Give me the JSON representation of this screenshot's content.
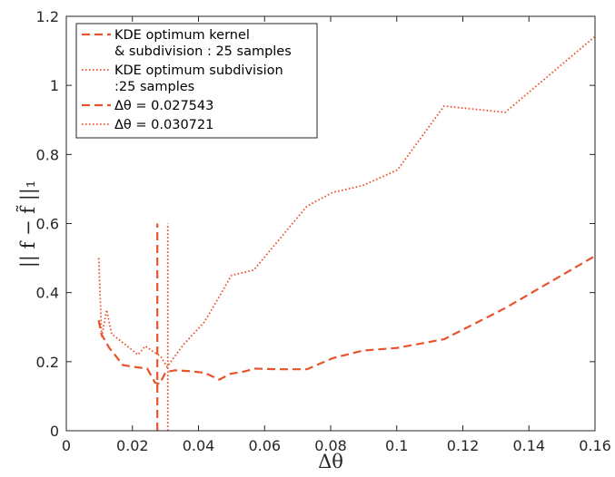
{
  "chart_data": {
    "type": "line",
    "xlabel": "Δθ",
    "ylabel": "|| f − f̃ ||₁",
    "xlim": [
      0,
      0.16
    ],
    "ylim": [
      0,
      1.2
    ],
    "xticks": [
      0,
      0.02,
      0.04,
      0.06,
      0.08,
      0.1,
      0.12,
      0.14,
      0.16
    ],
    "xtick_labels": [
      "0",
      "0.02",
      "0.04",
      "0.06",
      "0.08",
      "0.1",
      "0.12",
      "0.14",
      "0.16"
    ],
    "yticks": [
      0,
      0.2,
      0.4,
      0.6,
      0.8,
      1,
      1.2
    ],
    "ytick_labels": [
      "0",
      "0.2",
      "0.4",
      "0.6",
      "0.8",
      "1",
      "1.2"
    ],
    "grid": false,
    "legend_position": "top-left",
    "line_color": "#e8532b",
    "series": [
      {
        "name": "KDE optimum kernel & subdivision : 25 samples",
        "legend_lines": [
          "KDE optimum kernel",
          "& subdivision : 25 samples"
        ],
        "style": "dashed",
        "x": [
          0.0098,
          0.0106,
          0.0118,
          0.013,
          0.0147,
          0.0171,
          0.0205,
          0.0245,
          0.0268,
          0.0282,
          0.0301,
          0.0329,
          0.0368,
          0.0418,
          0.0463,
          0.0497,
          0.0531,
          0.0571,
          0.0637,
          0.0728,
          0.0806,
          0.0897,
          0.1002,
          0.1143,
          0.1328,
          0.1598
        ],
        "y": [
          0.32,
          0.28,
          0.26,
          0.24,
          0.22,
          0.19,
          0.185,
          0.18,
          0.14,
          0.135,
          0.17,
          0.175,
          0.173,
          0.168,
          0.148,
          0.165,
          0.17,
          0.18,
          0.178,
          0.178,
          0.21,
          0.232,
          0.24,
          0.265,
          0.355,
          0.505
        ]
      },
      {
        "name": "KDE optimum subdivision :25 samples",
        "legend_lines": [
          "KDE optimum subdivision",
          ":25 samples"
        ],
        "style": "dotted",
        "x": [
          0.0098,
          0.0107,
          0.0122,
          0.0137,
          0.0158,
          0.0217,
          0.0239,
          0.0262,
          0.0286,
          0.0305,
          0.0355,
          0.0418,
          0.05,
          0.0567,
          0.0728,
          0.0806,
          0.0897,
          0.1002,
          0.1143,
          0.1328,
          0.1598
        ],
        "y": [
          0.5,
          0.27,
          0.35,
          0.28,
          0.265,
          0.22,
          0.245,
          0.23,
          0.215,
          0.185,
          0.25,
          0.315,
          0.45,
          0.465,
          0.65,
          0.69,
          0.71,
          0.755,
          0.94,
          0.922,
          1.14
        ]
      },
      {
        "name": "Δθ = 0.027543",
        "style": "dashed",
        "x": [
          0.027543,
          0.027543
        ],
        "y": [
          0,
          0.6
        ]
      },
      {
        "name": "Δθ = 0.030721",
        "style": "dotted",
        "x": [
          0.030721,
          0.030721
        ],
        "y": [
          0,
          0.6
        ]
      }
    ]
  }
}
